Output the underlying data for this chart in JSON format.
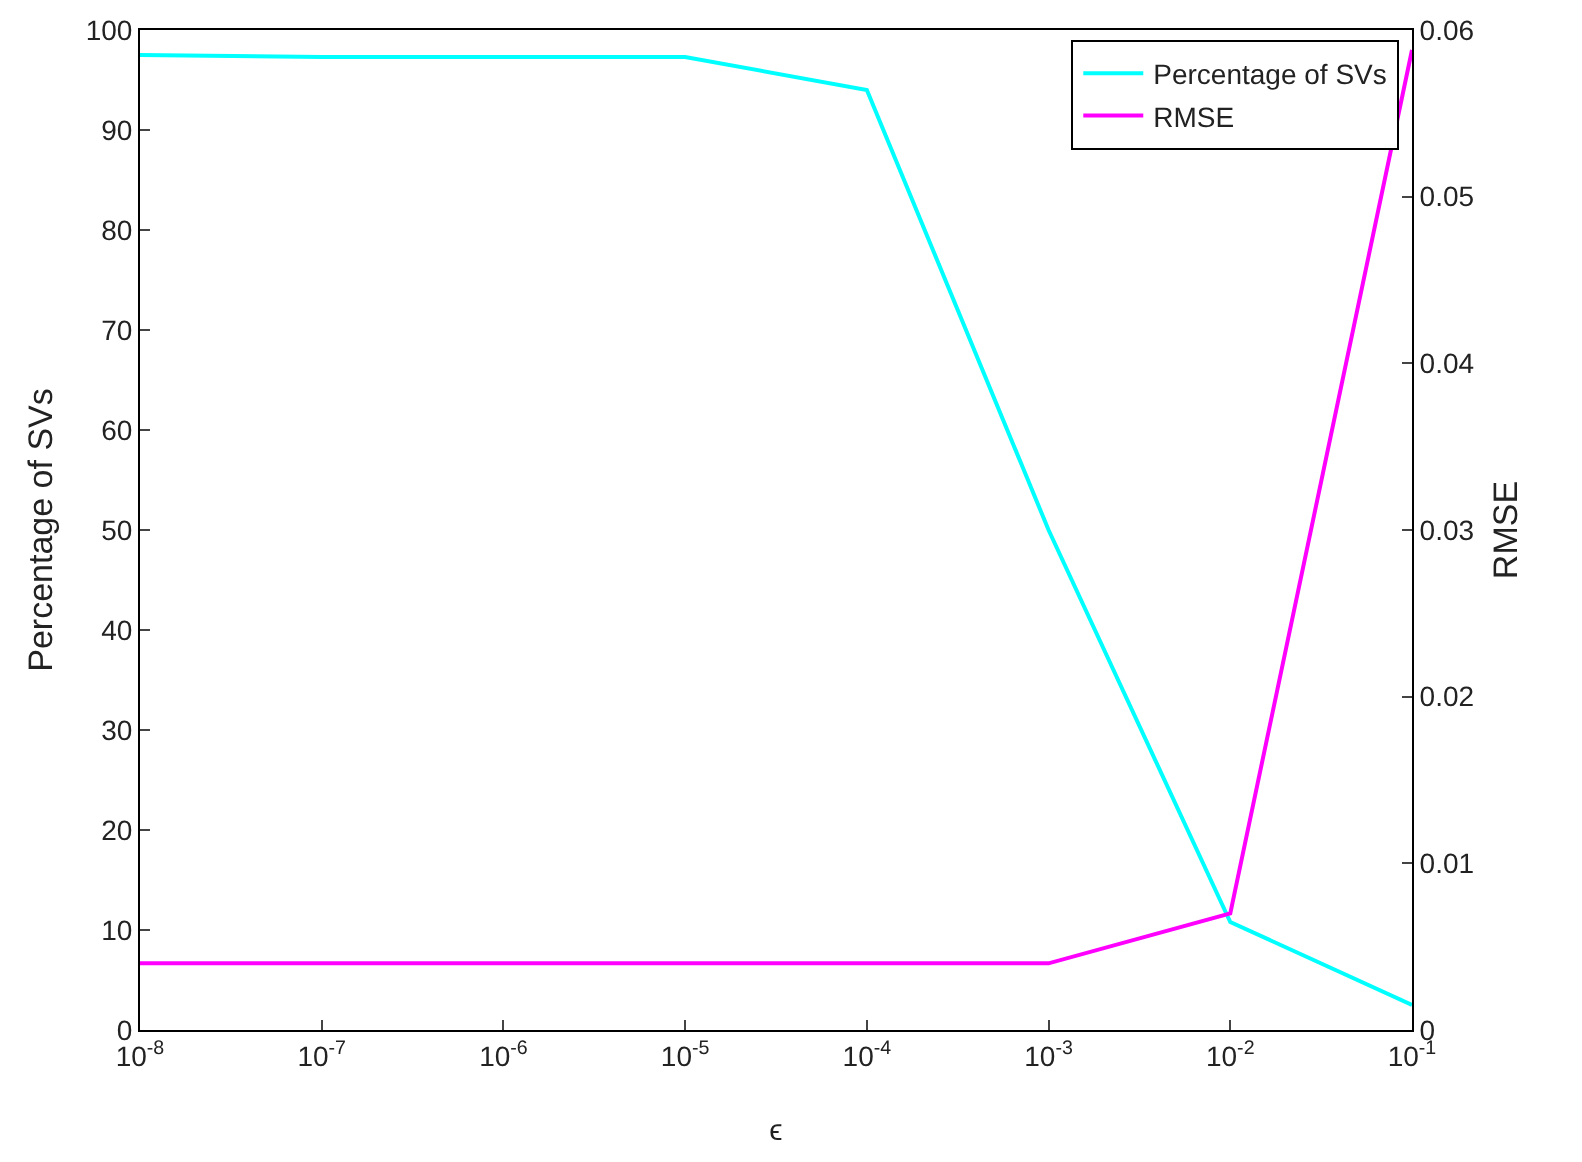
{
  "chart_data": {
    "type": "line",
    "xlabel": "ϵ",
    "ylabel": "Percentage of SVs",
    "y2label": "RMSE",
    "x": [
      1e-08,
      1e-07,
      1e-06,
      1e-05,
      0.0001,
      0.001,
      0.01,
      0.1
    ],
    "series": [
      {
        "name": "Percentage of SVs",
        "color": "#00ffff",
        "values": [
          97.5,
          97.3,
          97.3,
          97.3,
          94,
          50,
          10.8,
          2.5
        ]
      },
      {
        "name": "RMSE",
        "color": "#ff00ff",
        "axis": "y2",
        "values": [
          0.004,
          0.004,
          0.004,
          0.004,
          0.004,
          0.004,
          0.007,
          0.0588
        ]
      }
    ],
    "log": "x",
    "xlim": [
      1e-08,
      0.1
    ],
    "xticks": [
      {
        "value": 1e-08,
        "label": "10$^{-8}$"
      },
      {
        "value": 1e-07,
        "label": "10$^{-7}$"
      },
      {
        "value": 1e-06,
        "label": "10$^{-6}$"
      },
      {
        "value": 1e-05,
        "label": "10$^{-5}$"
      },
      {
        "value": 0.0001,
        "label": "10$^{-4}$"
      },
      {
        "value": 0.001,
        "label": "10$^{-3}$"
      },
      {
        "value": 0.01,
        "label": "10$^{-2}$"
      },
      {
        "value": 0.1,
        "label": "10$^{-1}$"
      }
    ],
    "ylim": [
      0,
      100
    ],
    "yticks": [
      0,
      10,
      20,
      30,
      40,
      50,
      60,
      70,
      80,
      90,
      100
    ],
    "y2lim": [
      0,
      0.06
    ],
    "y2ticks": [
      0,
      0.01,
      0.02,
      0.03,
      0.04,
      0.05,
      0.06
    ],
    "grid": false,
    "legend": "top right",
    "marker": "none",
    "line_style": "solid"
  }
}
